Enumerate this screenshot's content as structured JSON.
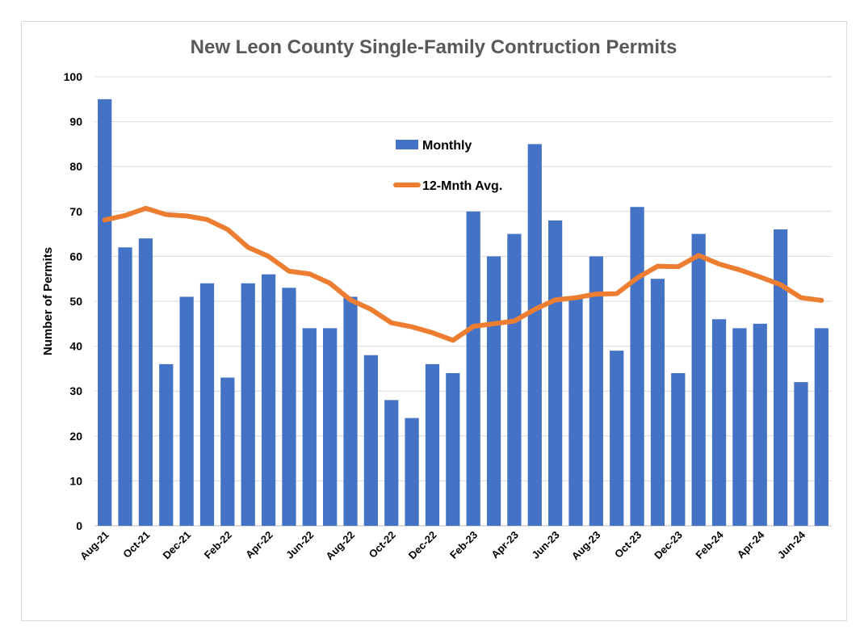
{
  "chart_data": {
    "type": "bar+line",
    "title": "New Leon County Single-Family Contruction Permits",
    "xlabel": "",
    "ylabel": "Number of Permits",
    "ylim": [
      0,
      100
    ],
    "yticks": [
      0,
      10,
      20,
      30,
      40,
      50,
      60,
      70,
      80,
      90,
      100
    ],
    "grid": true,
    "legend_placement": "top-center",
    "categories": [
      "Aug-21",
      "Sep-21",
      "Oct-21",
      "Nov-21",
      "Dec-21",
      "Jan-22",
      "Feb-22",
      "Mar-22",
      "Apr-22",
      "May-22",
      "Jun-22",
      "Jul-22",
      "Aug-22",
      "Sep-22",
      "Oct-22",
      "Nov-22",
      "Dec-22",
      "Jan-23",
      "Feb-23",
      "Mar-23",
      "Apr-23",
      "May-23",
      "Jun-23",
      "Jul-23",
      "Aug-23",
      "Sep-23",
      "Oct-23",
      "Nov-23",
      "Dec-23",
      "Jan-24",
      "Feb-24",
      "Mar-24",
      "Apr-24",
      "May-24",
      "Jun-24",
      "Jul-24"
    ],
    "tick_labels_shown": [
      "Aug-21",
      "Oct-21",
      "Dec-21",
      "Feb-22",
      "Apr-22",
      "Jun-22",
      "Aug-22",
      "Oct-22",
      "Dec-22",
      "Feb-23",
      "Apr-23",
      "Jun-23",
      "Aug-23",
      "Oct-23",
      "Dec-23",
      "Feb-24",
      "Apr-24",
      "Jun-24"
    ],
    "series": [
      {
        "name": "Monthly",
        "type": "bar",
        "color": "#4472c4",
        "values": [
          95,
          62,
          64,
          36,
          51,
          54,
          33,
          54,
          56,
          53,
          44,
          44,
          51,
          38,
          28,
          24,
          36,
          34,
          70,
          60,
          65,
          85,
          68,
          51,
          60,
          39,
          71,
          55,
          34,
          65,
          46,
          44,
          45,
          66,
          32,
          44
        ]
      },
      {
        "name": "12-Mnth Avg.",
        "type": "line",
        "color": "#ed7d31",
        "values": [
          68.1,
          69.1,
          70.7,
          69.3,
          69.0,
          68.2,
          66.0,
          62.0,
          60.0,
          56.7,
          56.1,
          54.0,
          50.3,
          48.2,
          45.2,
          44.3,
          43.0,
          41.3,
          44.4,
          45.0,
          45.6,
          48.2,
          50.3,
          50.8,
          51.6,
          51.7,
          55.2,
          57.8,
          57.7,
          60.2,
          58.3,
          57.0,
          55.4,
          53.7,
          50.8,
          50.2
        ]
      }
    ]
  }
}
